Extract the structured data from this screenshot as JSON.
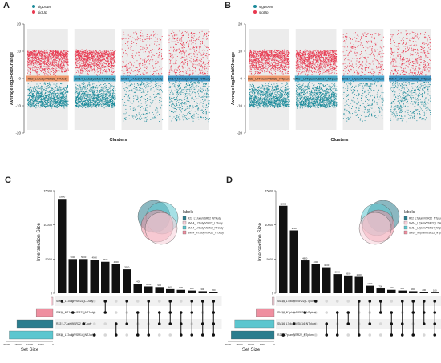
{
  "panels": [
    {
      "letter": "A",
      "legend": [
        "sigDown",
        "sigUp"
      ],
      "ylabel": "Average log2FoldChange",
      "xlabel": "Clusters",
      "ticks": [
        "20",
        "10",
        "0",
        "-10",
        "-20"
      ],
      "clusters": [
        "R22_L7Judy/VSR22_NTJudy",
        "SM14_L7Judy/SM14_NTJudy",
        "SM14_L7Judy/VSR22_L7Judy",
        "SM14_NTJudy/VSR22_NTJudy"
      ]
    },
    {
      "letter": "B",
      "legend": [
        "sigDown",
        "sigUp"
      ],
      "ylabel": "Average log2FoldChange",
      "xlabel": "Clusters",
      "ticks": [
        "20",
        "10",
        "0",
        "-10",
        "-20"
      ],
      "clusters": [
        "R22_L7Tplum/VSR22_NTplum",
        "SM14_L7Tplum/VSM14_NTplum",
        "SM14_L7plum/VSR22_L7plum",
        "SM14_NTplum/VSR22_NTplum"
      ]
    },
    {
      "letter": "C",
      "ylabel": "Intersection Size",
      "setsize_label": "Set Size",
      "legend_title": "labels",
      "bar_ticks": [
        "15000",
        "10000",
        "5000",
        "0"
      ],
      "setsize_ticks": [
        "20000",
        "15000",
        "10000",
        "5000",
        "0"
      ],
      "sets": [
        "SM14_L7Judy/VSR22_L7Judy",
        "SM14_NTJudy/VSR22_NTJudy",
        "R22_L7Judy/VSR22_NTJudy",
        "SM14_L7Judy/VSM14_NTJudy"
      ],
      "legend_items": [
        "R22_L7Judy/VSR22_NTJudy",
        "SM14_L7Judy/VSR22_L7Judy",
        "SM14_L7Judy/VSM14_NTJudy",
        "SM14_NTJudy/VSR22_NTJudy"
      ]
    },
    {
      "letter": "D",
      "ylabel": "Intersection Size",
      "setsize_label": "Set Size",
      "legend_title": "labels",
      "bar_ticks": [
        "15000",
        "10000",
        "5000",
        "0"
      ],
      "setsize_ticks": [
        "20000",
        "15000",
        "10000",
        "5000",
        "0"
      ],
      "sets": [
        "SM14_L7plum/VSR22_L7plum",
        "SM14_NTplum/VSR22_NTplum",
        "SM14_L7plum/VSM14_NTplum",
        "R22_L7plum/VSR22_NTplum"
      ],
      "legend_items": [
        "R22_L7plum/VSR22_NTplum",
        "SM14_L7plum/VSR22_L7plum",
        "SM14_L7plum/VSM14_NTplum",
        "SM14_NTplum/VSR22_NTplum"
      ]
    }
  ],
  "colors": {
    "up": "#e8384f",
    "down": "#1a8a9a",
    "tealDark": "#2b7d8e",
    "tealLight": "#5cc6cf",
    "pink": "#ef8fa0",
    "pinkPale": "#f7cfd8"
  },
  "chart_data": [
    {
      "type": "scatter",
      "panel": "A",
      "ylim": [
        -20,
        20
      ],
      "categories": [
        "R22_L7Judy/VSR22_NTJudy",
        "SM14_L7Judy/SM14_NTJudy",
        "SM14_L7Judy/VSR22_L7Judy",
        "SM14_NTJudy/VSR22_NTJudy"
      ],
      "series": [
        {
          "name": "sigUp",
          "density": [
            1,
            1,
            0.3,
            0.45
          ]
        },
        {
          "name": "sigDown",
          "density": [
            1,
            1,
            0.3,
            0.45
          ]
        }
      ]
    },
    {
      "type": "scatter",
      "panel": "B",
      "ylim": [
        -20,
        20
      ],
      "categories": [
        "R22_L7Tplum/VSR22_NTplum",
        "SM14_L7Tplum/VSM14_NTplum",
        "SM14_L7plum/VSR22_L7plum",
        "SM14_NTplum/VSR22_NTplum"
      ],
      "series": [
        {
          "name": "sigUp",
          "density": [
            1,
            1,
            0.3,
            0.45
          ]
        },
        {
          "name": "sigDown",
          "density": [
            1,
            1,
            0.3,
            0.45
          ]
        }
      ]
    },
    {
      "type": "bar",
      "panel": "C",
      "ylim": [
        0,
        15000
      ],
      "values": [
        13800,
        5000,
        5000,
        4900,
        4600,
        4300,
        3500,
        1400,
        1000,
        900,
        600,
        500,
        400,
        300,
        200
      ],
      "set_sizes": [
        900,
        7200,
        15500,
        18800
      ],
      "matrix": [
        [
          0
        ],
        [
          1
        ],
        [
          2
        ],
        [
          3
        ],
        [
          0,
          1
        ],
        [
          2,
          3
        ],
        [
          0,
          2
        ],
        [
          1,
          3
        ],
        [
          0,
          3
        ],
        [
          1,
          2
        ],
        [
          0,
          1,
          2
        ],
        [
          1,
          2,
          3
        ],
        [
          0,
          1,
          3
        ],
        [
          0,
          2,
          3
        ],
        [
          0,
          1,
          2,
          3
        ]
      ]
    },
    {
      "type": "bar",
      "panel": "D",
      "ylim": [
        0,
        15000
      ],
      "values": [
        12800,
        9200,
        4800,
        4300,
        3800,
        2800,
        2600,
        2400,
        1100,
        700,
        500,
        400,
        300,
        200,
        100
      ],
      "set_sizes": [
        900,
        7800,
        17000,
        18500
      ],
      "matrix": [
        [
          3
        ],
        [
          2
        ],
        [
          1
        ],
        [
          0
        ],
        [
          2,
          3
        ],
        [
          1,
          3
        ],
        [
          1,
          2
        ],
        [
          0,
          3
        ],
        [
          0,
          2
        ],
        [
          0,
          1
        ],
        [
          1,
          2,
          3
        ],
        [
          0,
          2,
          3
        ],
        [
          0,
          1,
          3
        ],
        [
          0,
          1,
          2
        ],
        [
          0,
          1,
          2,
          3
        ]
      ]
    }
  ]
}
